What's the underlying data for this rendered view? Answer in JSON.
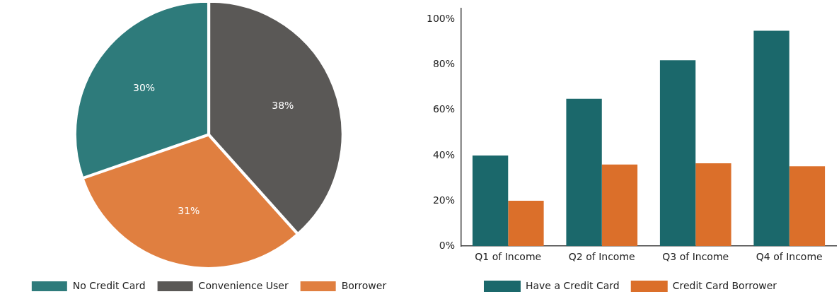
{
  "chart_data": [
    {
      "type": "pie",
      "categories": [
        "No Credit Card",
        "Convenience User",
        "Borrower"
      ],
      "values": [
        30,
        38,
        31
      ],
      "colors": [
        "#2e7b7b",
        "#5a5856",
        "#e07f40"
      ],
      "value_labels": [
        "30%",
        "38%",
        "31%"
      ],
      "legend": "bottom"
    },
    {
      "type": "bar",
      "categories": [
        "Q1 of Income",
        "Q2 of Income",
        "Q3 of Income",
        "Q4 of Income"
      ],
      "series": [
        {
          "name": "Have a Credit Card",
          "color": "#1b686b",
          "values": [
            40,
            65,
            82,
            95
          ]
        },
        {
          "name": "Credit Card Borrower",
          "color": "#db6f2a",
          "values": [
            20,
            36,
            36.5,
            35.2
          ]
        }
      ],
      "ylim": [
        0,
        105
      ],
      "yticks": [
        {
          "value": 0,
          "label": "0%"
        },
        {
          "value": 20,
          "label": "20%"
        },
        {
          "value": 40,
          "label": "40%"
        },
        {
          "value": 60,
          "label": "60%"
        },
        {
          "value": 80,
          "label": "80%"
        },
        {
          "value": 100,
          "label": "100%"
        }
      ],
      "grid": false,
      "legend": "bottom"
    }
  ]
}
